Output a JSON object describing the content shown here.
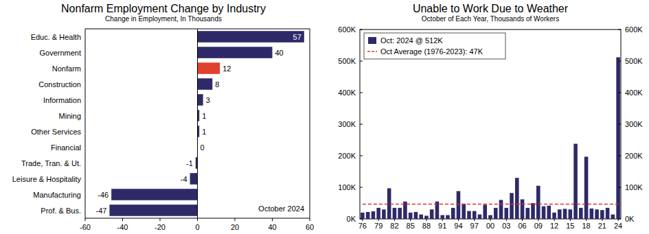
{
  "chart_data": [
    {
      "type": "bar",
      "orientation": "horizontal",
      "title": "Nonfarm Employment Change by Industry",
      "subtitle": "Change in Employment, In Thousands",
      "annotation": "October 2024",
      "categories": [
        "Educ. & Health",
        "Government",
        "Nonfarm",
        "Construction",
        "Information",
        "Mining",
        "Other Services",
        "Financial",
        "Trade, Tran. & Ut.",
        "Leisure & Hospitality",
        "Manufacturing",
        "Prof. & Bus."
      ],
      "values": [
        57,
        40,
        12,
        8,
        3,
        1,
        1,
        0,
        -1,
        -4,
        -46,
        -47
      ],
      "colors": [
        "#2e2a69",
        "#2e2a69",
        "#e0402e",
        "#2e2a69",
        "#2e2a69",
        "#2e2a69",
        "#2e2a69",
        "#2e2a69",
        "#2e2a69",
        "#2e2a69",
        "#2e2a69",
        "#2e2a69"
      ],
      "xlim": [
        -60,
        60
      ],
      "xticks": [
        -60,
        -40,
        -20,
        0,
        20,
        40,
        60
      ],
      "data_labels": true,
      "grid": false
    },
    {
      "type": "bar",
      "title": "Unable to Work Due to Weather",
      "subtitle": "October of Each Year, Thousands of Workers",
      "categories": [
        "76",
        null,
        null,
        "79",
        null,
        null,
        "82",
        null,
        null,
        "85",
        null,
        null,
        "88",
        null,
        null,
        "91",
        null,
        null,
        "94",
        null,
        null,
        "97",
        null,
        null,
        "00",
        null,
        null,
        "03",
        null,
        null,
        "06",
        null,
        null,
        "09",
        null,
        null,
        "12",
        null,
        null,
        "15",
        null,
        null,
        "18",
        null,
        null,
        "21",
        null,
        null,
        "24"
      ],
      "series": [
        {
          "name": "Oct: 2024 @ 512K",
          "color": "#2e2a69",
          "values": [
            20,
            22,
            24,
            35,
            30,
            97,
            35,
            35,
            55,
            20,
            22,
            14,
            10,
            30,
            55,
            12,
            12,
            35,
            88,
            48,
            25,
            25,
            14,
            45,
            12,
            35,
            60,
            35,
            82,
            130,
            62,
            35,
            50,
            105,
            40,
            42,
            20,
            30,
            32,
            30,
            238,
            35,
            197,
            33,
            30,
            28,
            35,
            14,
            512
          ]
        },
        {
          "name": "Oct Average (1976-2023): 47K",
          "type": "line",
          "line_style": "dashed",
          "color": "#e0302a",
          "values": [
            47,
            47,
            47,
            47,
            47,
            47,
            47,
            47,
            47,
            47,
            47,
            47,
            47,
            47,
            47,
            47,
            47,
            47,
            47,
            47,
            47,
            47,
            47,
            47,
            47,
            47,
            47,
            47,
            47,
            47,
            47,
            47,
            47,
            47,
            47,
            47,
            47,
            47,
            47,
            47,
            47,
            47,
            47,
            47,
            47,
            47,
            47,
            47,
            47
          ]
        }
      ],
      "ylim": [
        0,
        600
      ],
      "yticks": [
        {
          "value": 0,
          "label": "0K"
        },
        {
          "value": 100,
          "label": "100K"
        },
        {
          "value": 200,
          "label": "200K"
        },
        {
          "value": 300,
          "label": "300K"
        },
        {
          "value": 400,
          "label": "400K"
        },
        {
          "value": 500,
          "label": "500K"
        },
        {
          "value": 600,
          "label": "600K"
        }
      ],
      "y2lim": [
        0,
        600
      ],
      "y2ticks": [
        {
          "value": 0,
          "label": "0K"
        },
        {
          "value": 100,
          "label": "100K"
        },
        {
          "value": 200,
          "label": "200K"
        },
        {
          "value": 300,
          "label": "300K"
        },
        {
          "value": 400,
          "label": "400K"
        },
        {
          "value": 500,
          "label": "500K"
        },
        {
          "value": 600,
          "label": "600K"
        }
      ],
      "legend": "upper left",
      "grid": false
    }
  ]
}
